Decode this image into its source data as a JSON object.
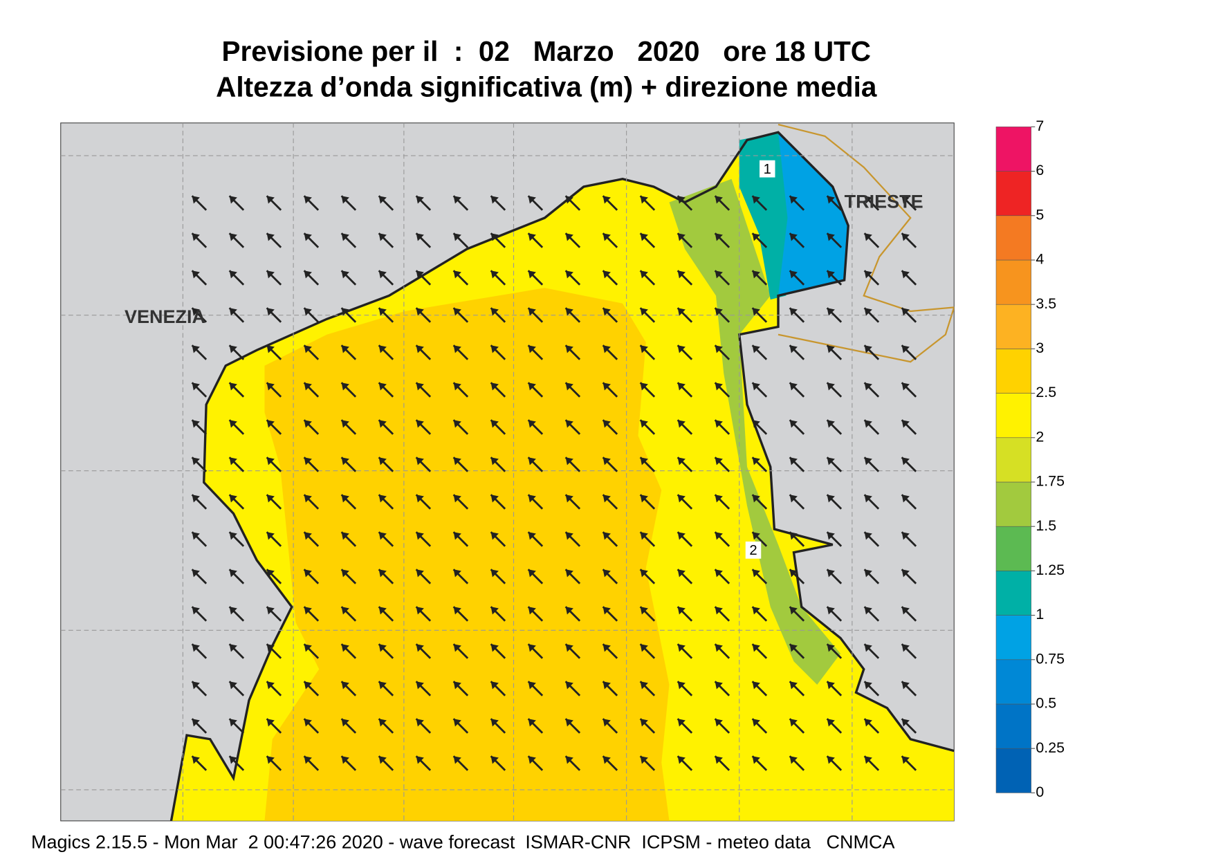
{
  "title": "Previsione per il  :  02   Marzo   2020   ore 18 UTC",
  "subtitle": "Altezza d’onda significativa (m) + direzione media",
  "places": [
    "VENEZIA",
    "TRIESTE"
  ],
  "contour_labels": [
    "1",
    "2"
  ],
  "legend": {
    "levels": [
      0,
      0.25,
      0.5,
      0.75,
      1,
      1.25,
      1.5,
      1.75,
      2,
      2.5,
      3,
      3.5,
      4,
      5,
      6,
      7
    ],
    "colors": [
      "#0062b4",
      "#0074c6",
      "#0088d6",
      "#00a2e4",
      "#00b0a6",
      "#5cba52",
      "#a2ca3e",
      "#d6e024",
      "#fff200",
      "#ffd200",
      "#fdb222",
      "#f7941e",
      "#f47a22",
      "#ee2424",
      "#ee1464"
    ]
  },
  "footer": "Magics 2.15.5 - Mon Mar  2 00:47:26 2020 - wave forecast  ISMAR-CNR  ICPSM - meteo data   CNMCA"
}
